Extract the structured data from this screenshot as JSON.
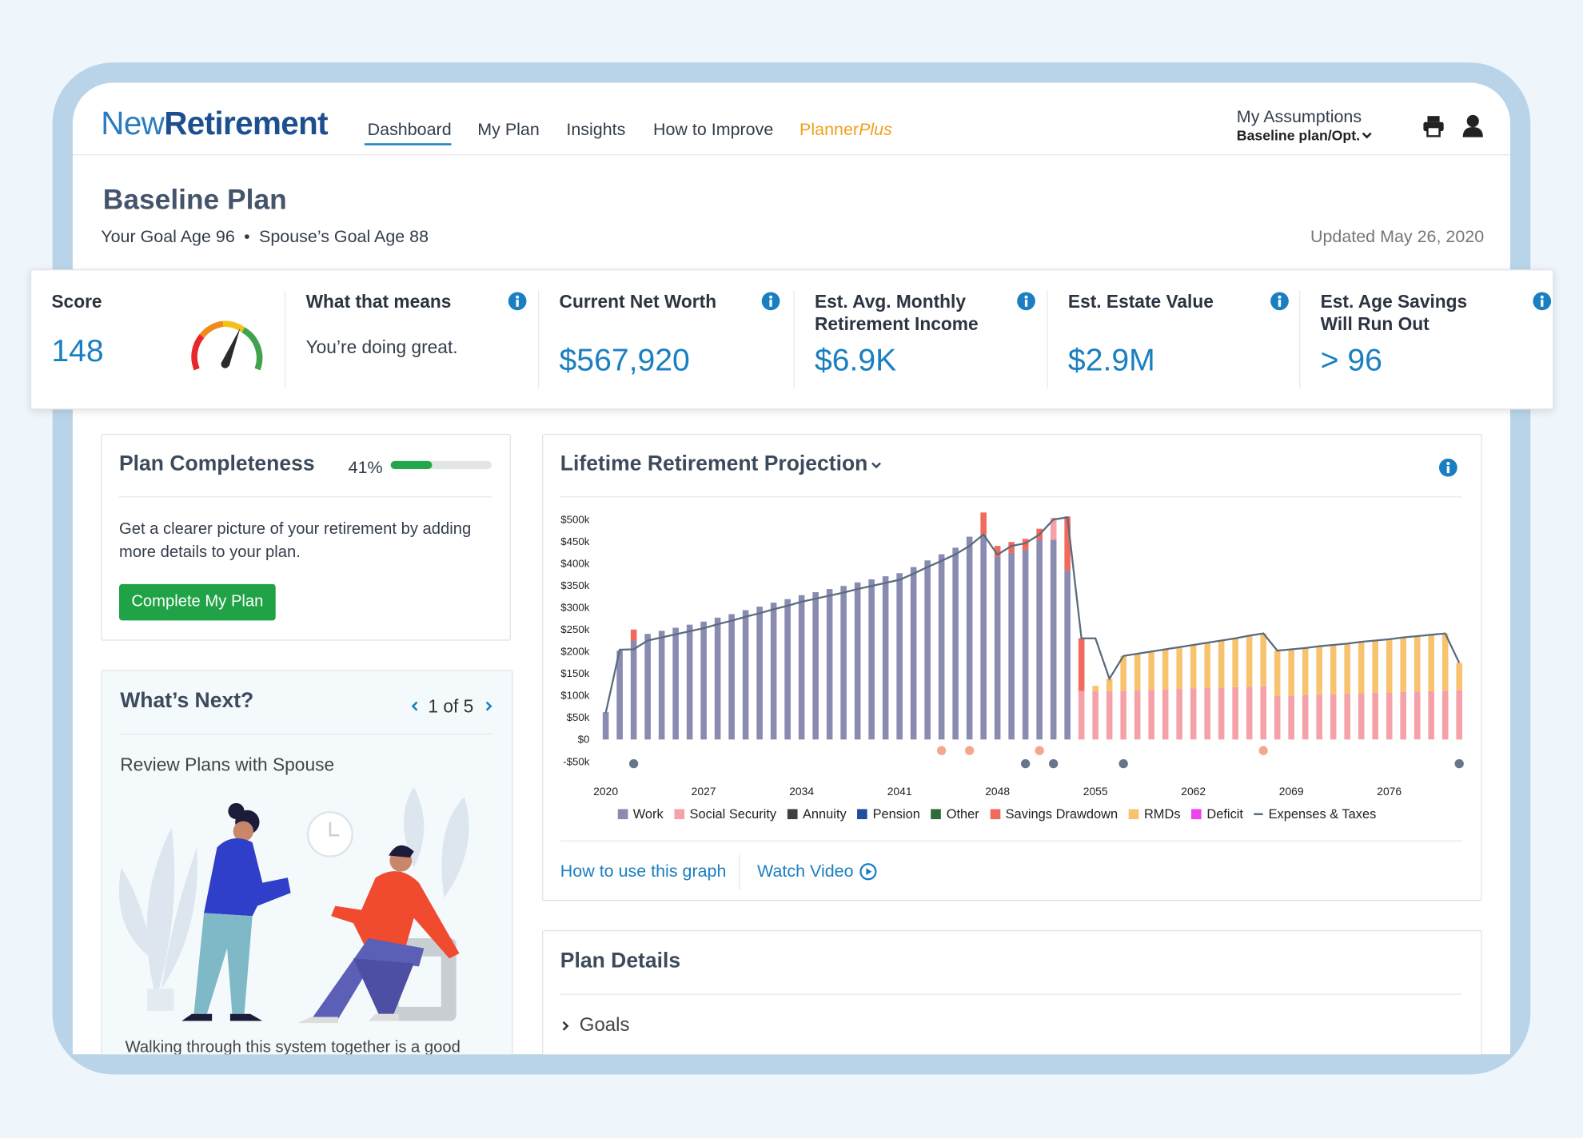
{
  "nav": {
    "logo": [
      "New",
      "Retirement"
    ],
    "items": [
      "Dashboard",
      "My Plan",
      "Insights",
      "How to Improve"
    ],
    "planner_plus": [
      "Planner",
      "Plus"
    ],
    "assumptions": {
      "label": "My Assumptions",
      "value": "Baseline plan/Opt."
    }
  },
  "header": {
    "title": "Baseline Plan",
    "goal_age": "Your Goal Age 96",
    "spouse_goal_age": "Spouse’s Goal Age 88",
    "updated": "Updated May 26, 2020"
  },
  "metrics": [
    {
      "title": "Score",
      "value": "148"
    },
    {
      "title": "What that means",
      "value": "You’re doing great."
    },
    {
      "title": "Current Net Worth",
      "value": "$567,920"
    },
    {
      "title": "Est. Avg. Monthly Retirement Income",
      "value": "$6.9K"
    },
    {
      "title": "Est. Estate Value",
      "value": "$2.9M"
    },
    {
      "title": "Est. Age Savings Will Run Out",
      "value": "> 96"
    }
  ],
  "plan_completeness": {
    "title": "Plan Completeness",
    "progress": {
      "value": 41,
      "label": "41%"
    },
    "text": "Get a clearer picture of your retirement by adding more details to your plan.",
    "button": "Complete My Plan"
  },
  "whats_next": {
    "title": "What’s Next?",
    "pager": "1 of 5",
    "item": "Review Plans with Spouse",
    "text": "Walking through this system together is a good"
  },
  "chart_data": {
    "type": "bar",
    "stacked": true,
    "title": "Lifetime Retirement Projection",
    "x": [
      2020,
      2021,
      2022,
      2023,
      2024,
      2025,
      2026,
      2027,
      2028,
      2029,
      2030,
      2031,
      2032,
      2033,
      2034,
      2035,
      2036,
      2037,
      2038,
      2039,
      2040,
      2041,
      2042,
      2043,
      2044,
      2045,
      2046,
      2047,
      2048,
      2049,
      2050,
      2051,
      2052,
      2053,
      2054,
      2055,
      2056,
      2057,
      2058,
      2059,
      2060,
      2061,
      2062,
      2063,
      2064,
      2065,
      2066,
      2067,
      2068,
      2069,
      2070,
      2071,
      2072,
      2073,
      2074,
      2075,
      2076,
      2077,
      2078,
      2079,
      2080,
      2081
    ],
    "xlim": [
      2019.5,
      2081.5
    ],
    "xticks": [
      2020,
      2027,
      2034,
      2041,
      2048,
      2055,
      2062,
      2069,
      2076
    ],
    "ylim": [
      -50,
      510
    ],
    "yticks": [
      {
        "value": 500,
        "label": "$500k"
      },
      {
        "value": 450,
        "label": "$450k"
      },
      {
        "value": 400,
        "label": "$400k"
      },
      {
        "value": 350,
        "label": "$350k"
      },
      {
        "value": 300,
        "label": "$300k"
      },
      {
        "value": 250,
        "label": "$250k"
      },
      {
        "value": 200,
        "label": "$200k"
      },
      {
        "value": 150,
        "label": "$150k"
      },
      {
        "value": 100,
        "label": "$100k"
      },
      {
        "value": 50,
        "label": "$50k"
      },
      {
        "value": 0,
        "label": "$0"
      },
      {
        "value": -50,
        "label": "-$50k"
      }
    ],
    "grid": false,
    "series": [
      {
        "name": "Work",
        "color": "#8a8bb1",
        "values": [
          62,
          202,
          225,
          240,
          247,
          254,
          261,
          268,
          277,
          285,
          294,
          302,
          311,
          319,
          328,
          335,
          342,
          349,
          357,
          364,
          371,
          378,
          392,
          407,
          421,
          436,
          461,
          466,
          415,
          424,
          431,
          454,
          454,
          385,
          0,
          0,
          0,
          0,
          0,
          0,
          0,
          0,
          0,
          0,
          0,
          0,
          0,
          0,
          0,
          0,
          0,
          0,
          0,
          0,
          0,
          0,
          0,
          0,
          0,
          0,
          0,
          0
        ]
      },
      {
        "name": "Social Security",
        "color": "#f5a1a9",
        "values": [
          0,
          0,
          0,
          0,
          0,
          0,
          0,
          0,
          0,
          0,
          0,
          0,
          0,
          0,
          0,
          0,
          0,
          0,
          0,
          0,
          0,
          0,
          0,
          0,
          0,
          0,
          0,
          0,
          0,
          0,
          0,
          0,
          50,
          0,
          110,
          110,
          110,
          111,
          112,
          113,
          114,
          115,
          116,
          117,
          118,
          119,
          120,
          121,
          99,
          100,
          101,
          102,
          103,
          104,
          105,
          106,
          107,
          108,
          109,
          110,
          111,
          112
        ]
      },
      {
        "name": "Annuity",
        "color": "#3f3f3f"
      },
      {
        "name": "Pension",
        "color": "#1f4e9c"
      },
      {
        "name": "Other",
        "color": "#2f6b3a"
      },
      {
        "name": "Savings Drawdown",
        "color": "#f2695d",
        "values": [
          0,
          0,
          25,
          0,
          0,
          0,
          0,
          0,
          0,
          0,
          0,
          0,
          0,
          0,
          0,
          0,
          0,
          0,
          0,
          0,
          0,
          0,
          0,
          0,
          0,
          0,
          0,
          50,
          25,
          25,
          25,
          25,
          0,
          122,
          120,
          0,
          0,
          0,
          0,
          0,
          0,
          0,
          0,
          0,
          0,
          0,
          0,
          0,
          0,
          0,
          0,
          0,
          0,
          0,
          0,
          0,
          0,
          0,
          0,
          0,
          0,
          0
        ]
      },
      {
        "name": "RMDs",
        "color": "#f8c36e",
        "values": [
          0,
          0,
          0,
          0,
          0,
          0,
          0,
          0,
          0,
          0,
          0,
          0,
          0,
          0,
          0,
          0,
          0,
          0,
          0,
          0,
          0,
          0,
          0,
          0,
          0,
          0,
          0,
          0,
          0,
          0,
          0,
          0,
          0,
          0,
          0,
          12,
          28,
          79,
          83,
          87,
          91,
          95,
          99,
          103,
          107,
          111,
          116,
          120,
          103,
          105,
          107,
          110,
          112,
          114,
          117,
          119,
          121,
          124,
          126,
          128,
          130,
          62
        ]
      },
      {
        "name": "Deficit",
        "color": "#ee44ee"
      },
      {
        "name": "Expenses & Taxes",
        "color": "#5b6b7e",
        "type": "line",
        "values": [
          60,
          204,
          205,
          225,
          232,
          239,
          246,
          253,
          262,
          270,
          279,
          287,
          296,
          304,
          313,
          320,
          327,
          334,
          342,
          349,
          356,
          363,
          377,
          392,
          406,
          421,
          440,
          466,
          420,
          440,
          446,
          466,
          500,
          505,
          230,
          230,
          138,
          190,
          195,
          200,
          205,
          210,
          215,
          220,
          225,
          230,
          236,
          241,
          202,
          205,
          208,
          212,
          215,
          218,
          222,
          225,
          228,
          232,
          235,
          238,
          241,
          174
        ]
      }
    ],
    "events": [
      {
        "color": "#66758a",
        "x": [
          2022,
          2050,
          2052,
          2057,
          2081
        ]
      },
      {
        "color": "#f5a78e",
        "x": [
          2044,
          2046,
          2051,
          2067
        ]
      }
    ]
  },
  "projection_links": [
    "How to use this graph",
    "Watch Video"
  ],
  "plan_details": {
    "title": "Plan Details",
    "items": [
      "Goals"
    ]
  }
}
